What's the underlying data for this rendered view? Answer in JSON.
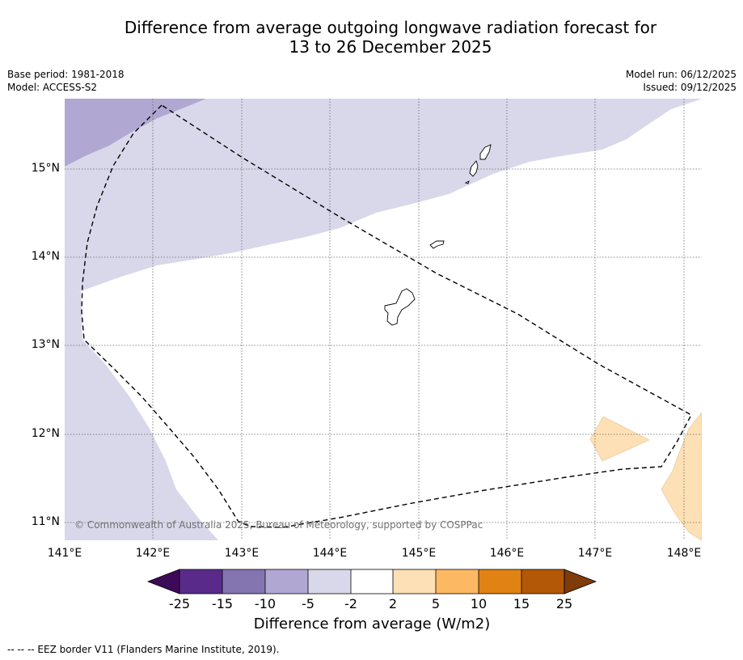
{
  "title_line1": "Difference from average outgoing longwave radiation forecast for",
  "title_line2": "13 to 26 December 2025",
  "meta": {
    "base_period": "Base period: 1981-2018",
    "model": "Model: ACCESS-S2",
    "model_run": "Model run: 06/12/2025",
    "issued": "Issued: 09/12/2025"
  },
  "map": {
    "lon_ticks": [
      "141°E",
      "142°E",
      "143°E",
      "144°E",
      "145°E",
      "146°E",
      "147°E",
      "148°E"
    ],
    "lat_ticks": [
      "15°N",
      "14°N",
      "13°N",
      "12°N",
      "11°N"
    ],
    "copyright": "© Commonwealth of Australia 2025, Bureau of Meteorology, supported by COSPPac"
  },
  "colorbar": {
    "ticks": [
      "-25",
      "-15",
      "-10",
      "-5",
      "-2",
      "2",
      "5",
      "10",
      "15",
      "25"
    ],
    "colors": [
      "#3d0a5a",
      "#5a2a8a",
      "#8474b0",
      "#b0a8d2",
      "#d8d8ea",
      "#ffffff",
      "#fde0b5",
      "#fdb863",
      "#e08214",
      "#b35806",
      "#7f3b08"
    ],
    "label": "Difference from average (W/m2)"
  },
  "footer": "--  --  -- EEZ border V11 (Flanders Marine Institute, 2019)."
}
